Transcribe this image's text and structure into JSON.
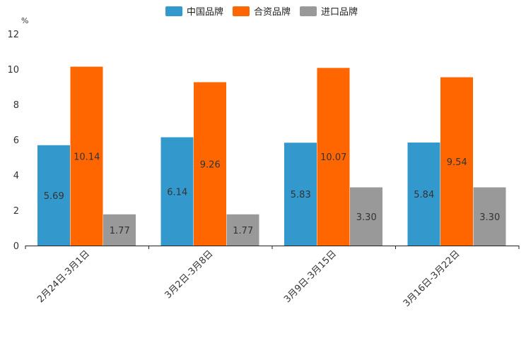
{
  "chart_data": {
    "type": "bar",
    "title": "",
    "unit": "%",
    "xlabel": "",
    "ylabel": "",
    "ylim": [
      0,
      12
    ],
    "yticks": [
      0,
      2,
      4,
      6,
      8,
      10,
      12
    ],
    "categories": [
      "2月24日-3月1日",
      "3月2日-3月8日",
      "3月9日-3月15日",
      "3月16日-3月22日"
    ],
    "series": [
      {
        "name": "中国品牌",
        "color": "#3399cc",
        "values": [
          5.69,
          6.14,
          5.83,
          5.84
        ],
        "labels": [
          "5.69",
          "6.14",
          "5.83",
          "5.84"
        ]
      },
      {
        "name": "合资品牌",
        "color": "#ff6600",
        "values": [
          10.14,
          9.26,
          10.07,
          9.54
        ],
        "labels": [
          "10.14",
          "9.26",
          "10.07",
          "9.54"
        ]
      },
      {
        "name": "进口品牌",
        "color": "#999999",
        "values": [
          1.77,
          1.77,
          3.3,
          3.3
        ],
        "labels": [
          "1.77",
          "1.77",
          "3.30",
          "3.30"
        ]
      }
    ],
    "legend": "top-center",
    "grid": false
  }
}
